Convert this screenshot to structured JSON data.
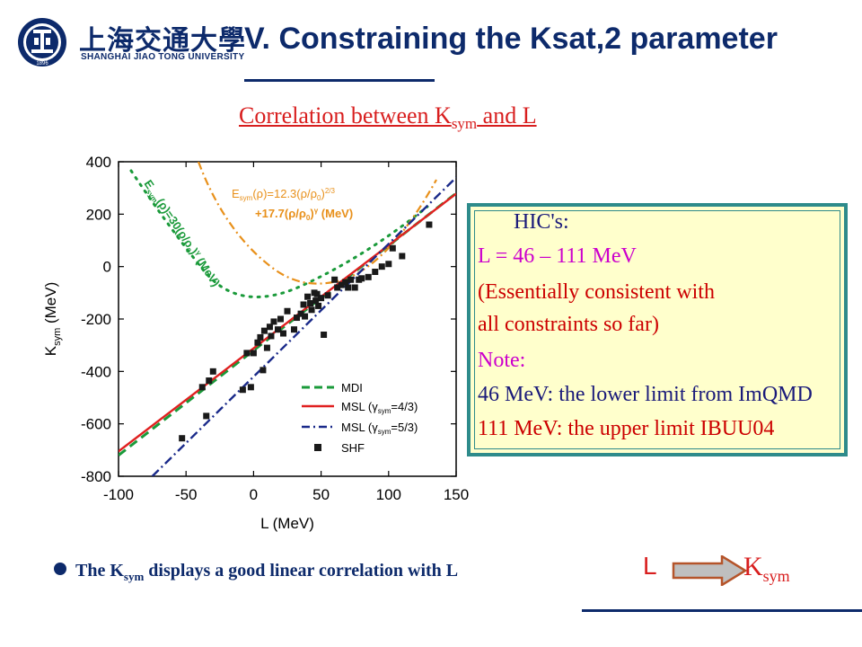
{
  "header": {
    "logo_cn": "上海交通大學",
    "logo_en": "SHANGHAI JIAO TONG UNIVERSITY",
    "logo_year": "1896",
    "title": "V. Constraining the Ksat,2 parameter"
  },
  "subtitle": {
    "text": "Correlation between K",
    "sub": "sym",
    "after": " and L"
  },
  "chart_data": {
    "type": "scatter",
    "xlabel": "L (MeV)",
    "ylabel": "K",
    "ylabel_sub": "sym",
    "ylabel_unit": " (MeV)",
    "xlim": [
      -100,
      150
    ],
    "ylim": [
      -800,
      400
    ],
    "xticks": [
      -100,
      -50,
      0,
      50,
      100,
      150
    ],
    "yticks": [
      -800,
      -600,
      -400,
      -200,
      0,
      200,
      400
    ],
    "legend": [
      {
        "label": "MDI",
        "sym": "",
        "note": ""
      },
      {
        "label": "MSL (γ",
        "sym": "sym",
        "note": "=4/3)"
      },
      {
        "label": "MSL (γ",
        "sym": "sym",
        "note": "=5/3)"
      },
      {
        "label": "SHF",
        "sym": "",
        "note": ""
      }
    ],
    "series": [
      {
        "name": "MDI",
        "color": "#1a9a3a",
        "style": "dashed",
        "x": [
          -100,
          150
        ],
        "y": [
          -720,
          280
        ]
      },
      {
        "name": "MSL (γsym=4/3)",
        "color": "#e02020",
        "style": "solid",
        "x": [
          -100,
          150
        ],
        "y": [
          -705,
          278
        ]
      },
      {
        "name": "MSL (γsym=5/3)",
        "color": "#1a2a8a",
        "style": "dashdot",
        "x": [
          -75,
          150
        ],
        "y": [
          -800,
          340
        ]
      }
    ],
    "shf_points": {
      "x": [
        -53,
        -38,
        -35,
        -33,
        -30,
        -8,
        -5,
        -2,
        0,
        3,
        5,
        7,
        8,
        10,
        12,
        13,
        15,
        18,
        20,
        22,
        25,
        30,
        32,
        35,
        37,
        38,
        40,
        42,
        43,
        45,
        46,
        47,
        48,
        50,
        52,
        55,
        60,
        62,
        65,
        68,
        70,
        72,
        75,
        78,
        80,
        85,
        90,
        95,
        100,
        103,
        110,
        130
      ],
      "y": [
        -655,
        -460,
        -570,
        -435,
        -400,
        -470,
        -330,
        -460,
        -330,
        -290,
        -270,
        -395,
        -245,
        -310,
        -230,
        -265,
        -210,
        -240,
        -200,
        -255,
        -170,
        -240,
        -195,
        -180,
        -145,
        -190,
        -115,
        -140,
        -165,
        -100,
        -130,
        -105,
        -150,
        -120,
        -260,
        -110,
        -50,
        -80,
        -70,
        -60,
        -80,
        -50,
        -80,
        -50,
        -45,
        -40,
        -20,
        0,
        10,
        70,
        40,
        160
      ]
    },
    "annotations": {
      "green_curve": {
        "E": "E",
        "sub": "sym",
        "text1": "(ρ)=30(ρ/ρ",
        "sub0": "0",
        "text2": ")",
        "sup": "γ",
        "text3": " (MeV)"
      },
      "orange_curve": {
        "line1": "E",
        "sub": "sym",
        "line1b": "(ρ)=12.3(ρ/ρ",
        "sub0": "0",
        "line1c": ")",
        "sup1": "2/3",
        "line2": "+17.7(ρ/ρ",
        "line2b": ")",
        "sup2": "γ",
        "line2c": " (MeV)"
      }
    }
  },
  "infobox": {
    "lines": [
      {
        "text": "HIC's:",
        "color": "#1a1a7a"
      },
      {
        "text": "L = 46 – 111 MeV",
        "color": "#cc00cc"
      },
      {
        "text": "(Essentially consistent with",
        "color": "#cc0000"
      },
      {
        "text": "all constraints so far)",
        "color": "#cc0000"
      },
      {
        "text": "Note:",
        "color": "#cc00cc"
      },
      {
        "text": "46 MeV: the lower limit from ImQMD",
        "color": "#1a1a7a"
      },
      {
        "text": "111 MeV: the upper limit IBUU04",
        "color": "#cc0000"
      }
    ]
  },
  "bullet": {
    "pre": "The K",
    "sub": "sym",
    "post": " displays a good linear correlation with L"
  },
  "relation": {
    "from": "L",
    "to": "K",
    "to_sub": "sym"
  },
  "colors": {
    "navy": "#0d2a6b",
    "red": "#d81e1e",
    "box_bg": "#ffffcc",
    "box_border": "#2e8b8b"
  }
}
